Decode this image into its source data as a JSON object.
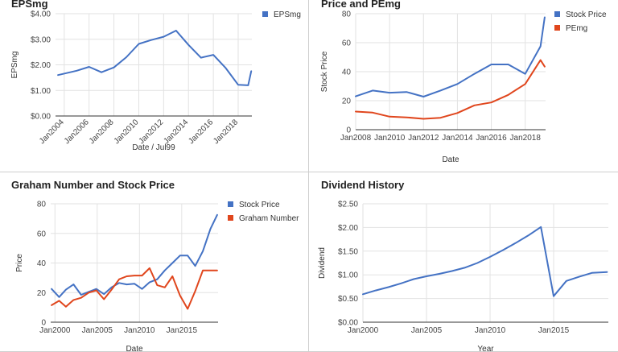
{
  "colors": {
    "blue": "#4472c4",
    "red": "#e0461d",
    "grid": "#e2e2e2",
    "axis": "#333333"
  },
  "chart_data": [
    {
      "id": "eps",
      "type": "line",
      "title": "EPSmg",
      "xlabel": "Date / Jul99",
      "ylabel": "EPSmg",
      "x_ticks": [
        "Jan2004",
        "Jan2006",
        "Jan2008",
        "Jan2010",
        "Jan2012",
        "Jan2014",
        "Jan2016",
        "Jan2018"
      ],
      "y_ticks": [
        "$0.00",
        "$1.00",
        "$2.00",
        "$3.00",
        "$4.00"
      ],
      "ylim": [
        0,
        4
      ],
      "xlim": [
        2003.3,
        2019.1
      ],
      "x_tick_rotation": -45,
      "legend": "right",
      "series": [
        {
          "name": "EPSmg",
          "color": "#4472c4",
          "x": [
            2003.5,
            2005,
            2006,
            2007,
            2008,
            2009,
            2010,
            2011,
            2012,
            2013,
            2014,
            2015,
            2016,
            2017,
            2018,
            2018.8,
            2019.05
          ],
          "y": [
            1.6,
            1.77,
            1.92,
            1.71,
            1.9,
            2.3,
            2.82,
            2.97,
            3.1,
            3.34,
            2.78,
            2.28,
            2.39,
            1.87,
            1.22,
            1.2,
            1.75
          ]
        }
      ]
    },
    {
      "id": "price_pe",
      "type": "line",
      "title": "Price and PEmg",
      "xlabel": "Date",
      "ylabel": "Stock Price",
      "x_ticks": [
        "Jan2008",
        "Jan2010",
        "Jan2012",
        "Jan2014",
        "Jan2016",
        "Jan2018"
      ],
      "y_ticks": [
        "0",
        "20",
        "40",
        "60",
        "80"
      ],
      "ylim": [
        0,
        80
      ],
      "xlim": [
        2008,
        2019.2
      ],
      "legend": "right",
      "series": [
        {
          "name": "Stock Price",
          "color": "#4472c4",
          "x": [
            2008,
            2009,
            2010,
            2011,
            2012,
            2013,
            2014,
            2015,
            2016,
            2017,
            2018,
            2018.9,
            2019.15
          ],
          "y": [
            23,
            27,
            25.5,
            26,
            22.8,
            27,
            31.5,
            38.5,
            45,
            45,
            38.5,
            57.5,
            77.5
          ]
        },
        {
          "name": "PEmg",
          "color": "#e0461d",
          "x": [
            2008,
            2009,
            2010,
            2011,
            2012,
            2013,
            2014,
            2015,
            2016,
            2017,
            2018,
            2018.9,
            2019.15
          ],
          "y": [
            12.5,
            11.8,
            9,
            8.5,
            7.5,
            8.2,
            11.5,
            16.8,
            18.8,
            24,
            31.5,
            48,
            43.5
          ]
        }
      ]
    },
    {
      "id": "graham",
      "type": "line",
      "title": "Graham Number and Stock Price",
      "xlabel": "Date",
      "ylabel": "Price",
      "x_ticks": [
        "Jan2000",
        "Jan2005",
        "Jan2010",
        "Jan2015"
      ],
      "y_ticks": [
        "0",
        "20",
        "40",
        "60",
        "80"
      ],
      "ylim": [
        0,
        80
      ],
      "xlim": [
        1999.5,
        2019.3
      ],
      "legend": "right",
      "series": [
        {
          "name": "Stock Price",
          "color": "#4472c4",
          "x": [
            1999.6,
            2000.5,
            2001.3,
            2002.2,
            2003.1,
            2004,
            2004.9,
            2005.8,
            2006.7,
            2007.6,
            2008.5,
            2009.4,
            2010.3,
            2011.2,
            2012.1,
            2013,
            2013.9,
            2014.8,
            2015.7,
            2016.6,
            2017.5,
            2018.4,
            2019.2
          ],
          "y": [
            22.5,
            17,
            22,
            25.5,
            18.5,
            20.5,
            22.5,
            19,
            23.5,
            26.5,
            25.5,
            26,
            22.5,
            27,
            29,
            35,
            40,
            45,
            45,
            38,
            48,
            63,
            72.5
          ]
        },
        {
          "name": "Graham Number",
          "color": "#e0461d",
          "x": [
            1999.6,
            2000.5,
            2001.3,
            2002.2,
            2003.1,
            2004,
            2004.9,
            2005.8,
            2006.7,
            2007.6,
            2008.5,
            2009.4,
            2010.3,
            2011.2,
            2012.1,
            2013,
            2013.9,
            2014.8,
            2015.7,
            2016.6,
            2017.5,
            2018.4,
            2019.2
          ],
          "y": [
            11.5,
            14.5,
            10.5,
            15,
            16.5,
            20,
            21.5,
            15.5,
            22,
            29,
            31,
            31.5,
            31.5,
            36.5,
            25,
            23.5,
            31,
            18,
            9,
            21,
            35,
            35,
            35
          ]
        }
      ]
    },
    {
      "id": "dividend",
      "type": "line",
      "title": "Dividend History",
      "xlabel": "Year",
      "ylabel": "Dividend",
      "x_ticks": [
        "Jan2000",
        "Jan2005",
        "Jan2010",
        "Jan2015"
      ],
      "y_ticks": [
        "$0.00",
        "$0.50",
        "$1.00",
        "$1.50",
        "$2.00",
        "$2.50"
      ],
      "ylim": [
        0,
        2.5
      ],
      "xlim": [
        2000,
        2019.3
      ],
      "series": [
        {
          "name": "",
          "color": "#4472c4",
          "x": [
            2000,
            2001,
            2002,
            2003,
            2004,
            2005,
            2006,
            2007,
            2008,
            2009,
            2010,
            2011,
            2012,
            2013,
            2014,
            2015,
            2016,
            2017,
            2018,
            2019.2
          ],
          "y": [
            0.59,
            0.67,
            0.74,
            0.82,
            0.91,
            0.97,
            1.02,
            1.08,
            1.15,
            1.25,
            1.38,
            1.52,
            1.67,
            1.83,
            2.01,
            0.55,
            0.87,
            0.96,
            1.04,
            1.06
          ]
        }
      ]
    }
  ]
}
